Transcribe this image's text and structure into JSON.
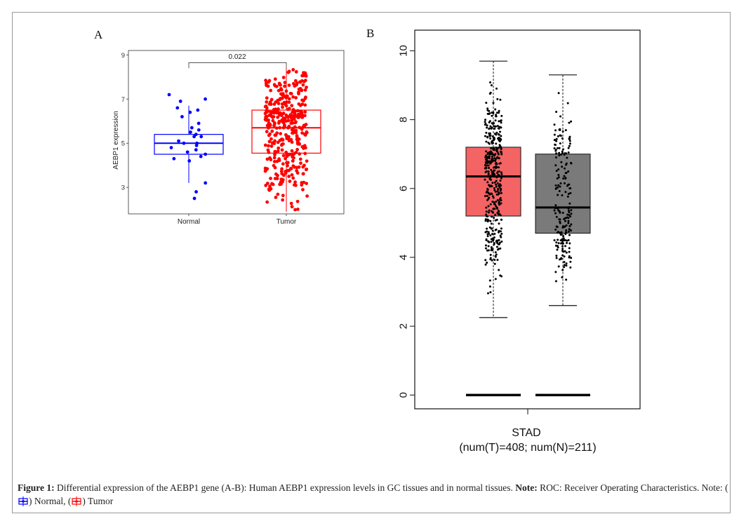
{
  "figure": {
    "caption_label": "Figure 1:",
    "caption_text": " Differential expression of the AEBP1 gene (A-B): Human AEBP1 expression levels in GC tissues and in normal tissues. ",
    "note_label": "Note:",
    "note_text": " ROC: Receiver Operating Characteristics. Note: (",
    "legend_normal": ") Normal, (",
    "legend_tumor": ") Tumor"
  },
  "chart_data": [
    {
      "panel": "A",
      "type": "box",
      "ylabel": "AEBP1 expression",
      "categories": [
        "Normal",
        "Tumor"
      ],
      "ylim": [
        1.8,
        9.2
      ],
      "yticks": [
        "3",
        "5",
        "7",
        "9"
      ],
      "annotation": "0.022",
      "colors": {
        "Normal": "#0000ff",
        "Tumor": "#ff0000"
      },
      "boxes": [
        {
          "name": "Normal",
          "min": 3.2,
          "q1": 4.5,
          "median": 5.0,
          "q3": 5.4,
          "max": 6.7
        },
        {
          "name": "Tumor",
          "min": 1.9,
          "q1": 4.55,
          "median": 5.7,
          "q3": 6.5,
          "max": 8.4
        }
      ],
      "points": {
        "Normal": [
          7.2,
          7.0,
          6.9,
          6.6,
          6.5,
          6.4,
          6.2,
          5.9,
          5.6,
          5.5,
          5.4,
          5.3,
          5.3,
          5.1,
          5.0,
          5.0,
          4.9,
          4.8,
          4.7,
          4.6,
          4.5,
          4.4,
          4.3,
          4.2,
          3.2,
          2.8,
          2.5,
          5.7
        ]
      }
    },
    {
      "panel": "B",
      "type": "box",
      "xlabel": "STAD",
      "xsublabel": "(num(T)=408; num(N)=211)",
      "ylim": [
        -0.4,
        10.6
      ],
      "yticks": [
        "0",
        "2",
        "4",
        "6",
        "8",
        "10"
      ],
      "colors": {
        "Tumor": "#f46464",
        "Normal": "#7a7a7a"
      },
      "boxes": [
        {
          "name": "Tumor",
          "n": 408,
          "min": 2.25,
          "q1": 5.2,
          "median": 6.35,
          "q3": 7.2,
          "max": 9.7
        },
        {
          "name": "Normal",
          "n": 211,
          "min": 2.6,
          "q1": 4.7,
          "median": 5.45,
          "q3": 7.0,
          "max": 9.3
        }
      ],
      "baseline": 0
    }
  ]
}
